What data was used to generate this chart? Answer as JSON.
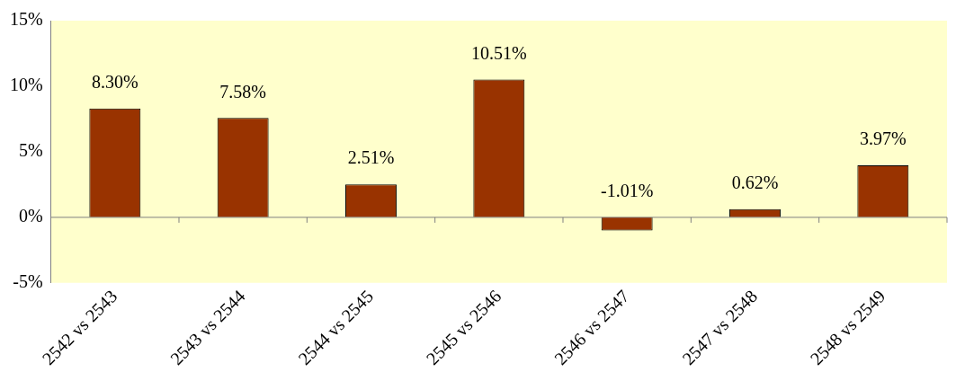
{
  "chart_data": {
    "type": "bar",
    "categories": [
      "2542 vs 2543",
      "2543 vs 2544",
      "2544 vs 2545",
      "2545 vs 2546",
      "2546 vs 2547",
      "2547 vs 2548",
      "2548 vs 2549"
    ],
    "values": [
      8.3,
      7.58,
      2.51,
      10.51,
      -1.01,
      0.62,
      3.97
    ],
    "value_labels": [
      "8.30%",
      "7.58%",
      "2.51%",
      "10.51%",
      "-1.01%",
      "0.62%",
      "3.97%"
    ],
    "color": "#993300",
    "ylim": [
      -5,
      15
    ],
    "yticks": [
      {
        "value": -5,
        "label": "-5%"
      },
      {
        "value": 0,
        "label": "0%"
      },
      {
        "value": 5,
        "label": "5%"
      },
      {
        "value": 10,
        "label": "10%"
      },
      {
        "value": 15,
        "label": "15%"
      }
    ],
    "legend": false
  }
}
